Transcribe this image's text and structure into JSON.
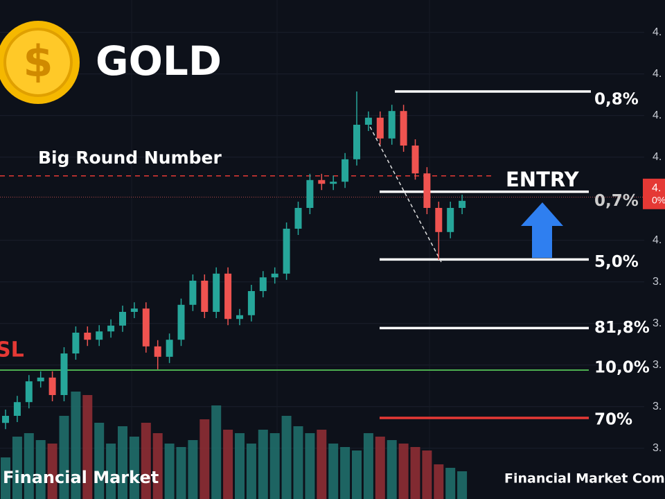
{
  "chart_data": {
    "type": "candlestick",
    "title": "GOLD",
    "annotations": {
      "round_number": "Big Round Number",
      "entry": "ENTRY",
      "stop_loss": "SL",
      "watermark_left": "Financial Market",
      "watermark_right": "Financial Market Comp"
    },
    "ylim": [
      3.378,
      4.578
    ],
    "yticks": [
      {
        "value": 4.5,
        "label": "4."
      },
      {
        "value": 4.4,
        "label": "4."
      },
      {
        "value": 4.3,
        "label": "4."
      },
      {
        "value": 4.2,
        "label": "4."
      },
      {
        "value": 4.0,
        "label": "4."
      },
      {
        "value": 3.9,
        "label": "3."
      },
      {
        "value": 3.8,
        "label": "3."
      },
      {
        "value": 3.7,
        "label": "3."
      },
      {
        "value": 3.6,
        "label": "3."
      },
      {
        "value": 3.5,
        "label": "3."
      }
    ],
    "grid": true,
    "up_color": "#26a69a",
    "down_color": "#ef5350",
    "open": [
      3.561,
      3.578,
      3.611,
      3.661,
      3.67,
      3.628,
      3.728,
      3.778,
      3.761,
      3.781,
      3.795,
      3.828,
      3.836,
      3.745,
      3.72,
      3.761,
      3.845,
      3.903,
      3.828,
      3.92,
      3.811,
      3.82,
      3.878,
      3.911,
      3.92,
      4.028,
      4.078,
      4.145,
      4.136,
      4.141,
      4.195,
      4.278,
      4.295,
      4.245,
      4.311,
      4.228,
      4.161,
      4.078,
      4.02,
      4.078
    ],
    "close": [
      3.578,
      3.611,
      3.661,
      3.67,
      3.628,
      3.728,
      3.778,
      3.761,
      3.781,
      3.795,
      3.828,
      3.836,
      3.745,
      3.72,
      3.761,
      3.845,
      3.903,
      3.828,
      3.92,
      3.811,
      3.82,
      3.878,
      3.911,
      3.92,
      4.028,
      4.078,
      4.145,
      4.136,
      4.141,
      4.195,
      4.278,
      4.295,
      4.245,
      4.311,
      4.228,
      4.161,
      4.078,
      4.02,
      4.078,
      4.095
    ],
    "high": [
      3.593,
      3.626,
      3.676,
      3.685,
      3.685,
      3.743,
      3.793,
      3.793,
      3.796,
      3.81,
      3.843,
      3.851,
      3.851,
      3.76,
      3.776,
      3.86,
      3.918,
      3.918,
      3.935,
      3.935,
      3.835,
      3.893,
      3.926,
      3.935,
      4.043,
      4.093,
      4.16,
      4.16,
      4.156,
      4.21,
      4.358,
      4.31,
      4.31,
      4.326,
      4.326,
      4.243,
      4.176,
      4.093,
      4.093,
      4.11
    ],
    "low": [
      3.546,
      3.563,
      3.596,
      3.646,
      3.613,
      3.613,
      3.713,
      3.746,
      3.746,
      3.766,
      3.78,
      3.813,
      3.73,
      3.69,
      3.705,
      3.746,
      3.83,
      3.813,
      3.813,
      3.796,
      3.796,
      3.805,
      3.863,
      3.896,
      3.905,
      4.013,
      4.063,
      4.121,
      4.121,
      4.126,
      4.18,
      4.263,
      4.23,
      4.23,
      4.213,
      4.146,
      4.063,
      3.953,
      4.005,
      4.063
    ],
    "volume": [
      60,
      90,
      95,
      85,
      80,
      120,
      155,
      150,
      110,
      80,
      105,
      90,
      110,
      95,
      80,
      75,
      85,
      115,
      135,
      100,
      95,
      80,
      100,
      95,
      120,
      105,
      95,
      100,
      80,
      75,
      70,
      95,
      90,
      85,
      80,
      75,
      70,
      50,
      45,
      40
    ],
    "volume_lim": [
      0,
      160
    ],
    "current_price": {
      "value": 4.125,
      "label": "4.",
      "change_label": "0%",
      "color": "#e53935"
    },
    "round_number_line": {
      "value": 4.155,
      "color": "#e53935"
    },
    "price_line": {
      "value": 4.104,
      "color": "#b84a4a"
    },
    "levels": [
      {
        "label": "0,8%",
        "value": 4.358,
        "color": "#ffffff"
      },
      {
        "label": "0,7%",
        "value": 4.117,
        "color": "#ffffff"
      },
      {
        "label": "5,0%",
        "value": 3.954,
        "color": "#ffffff"
      },
      {
        "label": "81,8%",
        "value": 3.789,
        "color": "#ffffff"
      },
      {
        "label": "10,0%",
        "value": 3.688,
        "color": "#4caf50"
      },
      {
        "label": "70%",
        "value": 3.573,
        "color": "#e53935"
      }
    ]
  }
}
